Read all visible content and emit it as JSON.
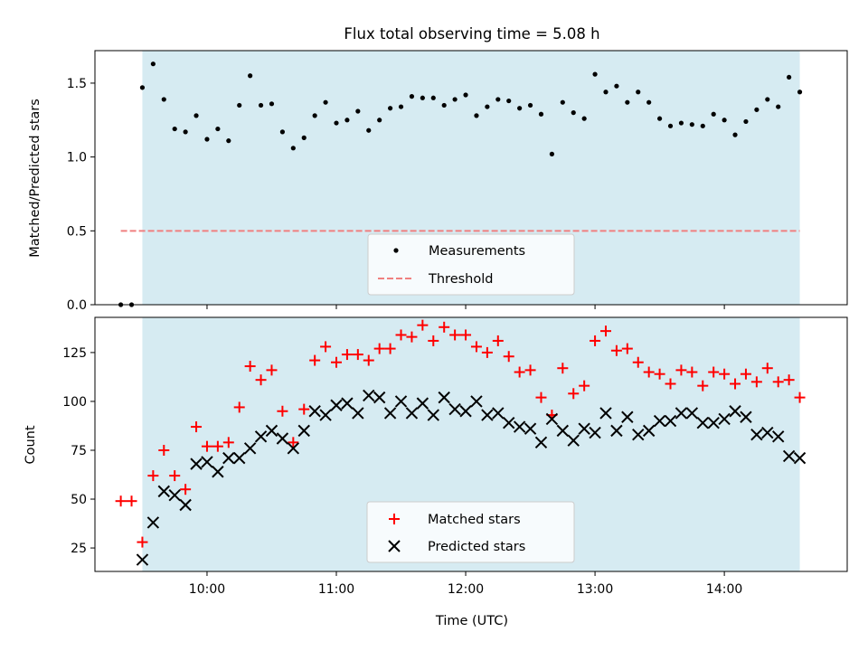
{
  "chart_data": [
    {
      "type": "scatter",
      "title": "Flux total observing time = 5.08 h",
      "ylabel": "Matched/Predicted stars",
      "xlabel": "",
      "xlim": [
        "09:08",
        "14:57"
      ],
      "ylim": [
        0,
        1.72
      ],
      "yticks": [
        0.0,
        0.5,
        1.0,
        1.5
      ],
      "ytick_labels": [
        "0.0",
        "0.5",
        "1.0",
        "1.5"
      ],
      "xticks": [
        "10:00",
        "11:00",
        "12:00",
        "13:00",
        "14:00"
      ],
      "observing_window": [
        "09:30",
        "14:35"
      ],
      "threshold": {
        "value": 0.5,
        "x_range": [
          "09:20",
          "14:35"
        ]
      },
      "legend": {
        "position": "lower center",
        "entries": [
          "Measurements",
          "Threshold"
        ]
      },
      "series": [
        {
          "name": "Measurements",
          "x": [
            "09:20",
            "09:25",
            "09:30",
            "09:35",
            "09:40",
            "09:45",
            "09:50",
            "09:55",
            "10:00",
            "10:05",
            "10:10",
            "10:15",
            "10:20",
            "10:25",
            "10:30",
            "10:35",
            "10:40",
            "10:45",
            "10:50",
            "10:55",
            "11:00",
            "11:05",
            "11:10",
            "11:15",
            "11:20",
            "11:25",
            "11:30",
            "11:35",
            "11:40",
            "11:45",
            "11:50",
            "11:55",
            "12:00",
            "12:05",
            "12:10",
            "12:15",
            "12:20",
            "12:25",
            "12:30",
            "12:35",
            "12:40",
            "12:45",
            "12:50",
            "12:55",
            "13:00",
            "13:05",
            "13:10",
            "13:15",
            "13:20",
            "13:25",
            "13:30",
            "13:35",
            "13:40",
            "13:45",
            "13:50",
            "13:55",
            "14:00",
            "14:05",
            "14:10",
            "14:15",
            "14:20",
            "14:25",
            "14:30",
            "14:35"
          ],
          "y": [
            0.0,
            0.0,
            1.47,
            1.63,
            1.39,
            1.19,
            1.17,
            1.28,
            1.12,
            1.19,
            1.11,
            1.35,
            1.55,
            1.35,
            1.36,
            1.17,
            1.06,
            1.13,
            1.28,
            1.37,
            1.23,
            1.25,
            1.31,
            1.18,
            1.25,
            1.33,
            1.34,
            1.41,
            1.4,
            1.4,
            1.35,
            1.39,
            1.42,
            1.28,
            1.34,
            1.39,
            1.38,
            1.33,
            1.35,
            1.29,
            1.02,
            1.37,
            1.3,
            1.26,
            1.56,
            1.44,
            1.48,
            1.37,
            1.44,
            1.37,
            1.26,
            1.21,
            1.23,
            1.22,
            1.21,
            1.29,
            1.25,
            1.15,
            1.24,
            1.32,
            1.39,
            1.34,
            1.54,
            1.44
          ]
        }
      ]
    },
    {
      "type": "scatter",
      "title": "",
      "xlabel": "Time (UTC)",
      "ylabel": "Count",
      "xlim": [
        "09:08",
        "14:57"
      ],
      "ylim": [
        13,
        143
      ],
      "yticks": [
        25,
        50,
        75,
        100,
        125
      ],
      "ytick_labels": [
        "25",
        "50",
        "75",
        "100",
        "125"
      ],
      "xticks": [
        "10:00",
        "11:00",
        "12:00",
        "13:00",
        "14:00"
      ],
      "xtick_labels": [
        "10:00",
        "11:00",
        "12:00",
        "13:00",
        "14:00"
      ],
      "observing_window": [
        "09:30",
        "14:35"
      ],
      "legend": {
        "position": "lower center",
        "entries": [
          "Matched stars",
          "Predicted stars"
        ]
      },
      "x": [
        "09:20",
        "09:25",
        "09:30",
        "09:35",
        "09:40",
        "09:45",
        "09:50",
        "09:55",
        "10:00",
        "10:05",
        "10:10",
        "10:15",
        "10:20",
        "10:25",
        "10:30",
        "10:35",
        "10:40",
        "10:45",
        "10:50",
        "10:55",
        "11:00",
        "11:05",
        "11:10",
        "11:15",
        "11:20",
        "11:25",
        "11:30",
        "11:35",
        "11:40",
        "11:45",
        "11:50",
        "11:55",
        "12:00",
        "12:05",
        "12:10",
        "12:15",
        "12:20",
        "12:25",
        "12:30",
        "12:35",
        "12:40",
        "12:45",
        "12:50",
        "12:55",
        "13:00",
        "13:05",
        "13:10",
        "13:15",
        "13:20",
        "13:25",
        "13:30",
        "13:35",
        "13:40",
        "13:45",
        "13:50",
        "13:55",
        "14:00",
        "14:05",
        "14:10",
        "14:15",
        "14:20",
        "14:25",
        "14:30",
        "14:35"
      ],
      "series": [
        {
          "name": "Matched stars",
          "color": "#ff0000",
          "marker": "plus",
          "values": [
            49,
            49,
            28,
            62,
            75,
            62,
            55,
            87,
            77,
            77,
            79,
            97,
            118,
            111,
            116,
            95,
            79,
            96,
            121,
            128,
            120,
            124,
            124,
            121,
            127,
            127,
            134,
            133,
            139,
            131,
            138,
            134,
            134,
            128,
            125,
            131,
            123,
            115,
            116,
            102,
            93,
            117,
            104,
            108,
            131,
            136,
            126,
            127,
            120,
            115,
            114,
            109,
            116,
            115,
            108,
            115,
            114,
            109,
            114,
            110,
            117,
            110,
            111,
            102
          ]
        },
        {
          "name": "Predicted stars",
          "color": "#000000",
          "marker": "x",
          "values": [
            null,
            null,
            19,
            38,
            54,
            52,
            47,
            68,
            69,
            64,
            71,
            71,
            76,
            82,
            85,
            81,
            76,
            85,
            95,
            93,
            98,
            99,
            94,
            103,
            102,
            94,
            100,
            94,
            99,
            93,
            102,
            96,
            95,
            100,
            93,
            94,
            89,
            87,
            86,
            79,
            91,
            85,
            80,
            86,
            84,
            94,
            85,
            92,
            83,
            85,
            90,
            90,
            94,
            94,
            89,
            89,
            91,
            95,
            92,
            83,
            84,
            82,
            72,
            71
          ]
        }
      ]
    }
  ]
}
